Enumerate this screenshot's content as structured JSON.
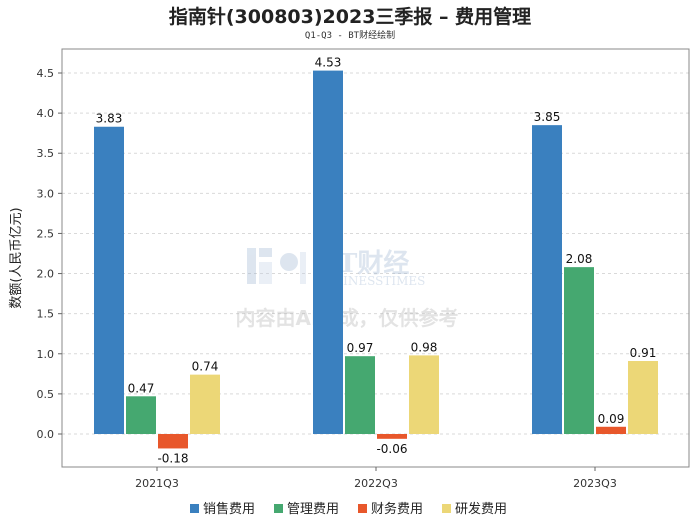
{
  "chart_data": {
    "type": "bar",
    "title": "指南针(300803)2023三季报 – 费用管理",
    "subtitle": "Q1-Q3 - BT财经绘制",
    "xlabel": "",
    "ylabel": "数额(人民币亿元)",
    "ylim": [
      -0.4,
      4.75
    ],
    "yticks": [
      "0.0",
      "0.5",
      "1.0",
      "1.5",
      "2.0",
      "2.5",
      "3.0",
      "3.5",
      "4.0",
      "4.5"
    ],
    "categories": [
      "2021Q3",
      "2022Q3",
      "2023Q3"
    ],
    "series": [
      {
        "name": "销售费用",
        "color": "#3a80bf",
        "values": [
          3.83,
          4.53,
          3.85
        ],
        "labels": [
          "3.83",
          "4.53",
          "3.85"
        ]
      },
      {
        "name": "管理费用",
        "color": "#45a870",
        "values": [
          0.47,
          0.97,
          2.08
        ],
        "labels": [
          "0.47",
          "0.97",
          "2.08"
        ]
      },
      {
        "name": "财务费用",
        "color": "#e8572b",
        "values": [
          -0.18,
          -0.06,
          0.09
        ],
        "labels": [
          "-0.18",
          "-0.06",
          "0.09"
        ]
      },
      {
        "name": "研发费用",
        "color": "#ecd777",
        "values": [
          0.74,
          0.98,
          0.91
        ],
        "labels": [
          "0.74",
          "0.98",
          "0.91"
        ]
      }
    ],
    "grid": true,
    "legend": "bottom-center"
  },
  "watermark": {
    "brand": "BT财经",
    "brand_en": "BUSINESSTIMES",
    "notice": "内容由AI生成，仅供参考"
  }
}
